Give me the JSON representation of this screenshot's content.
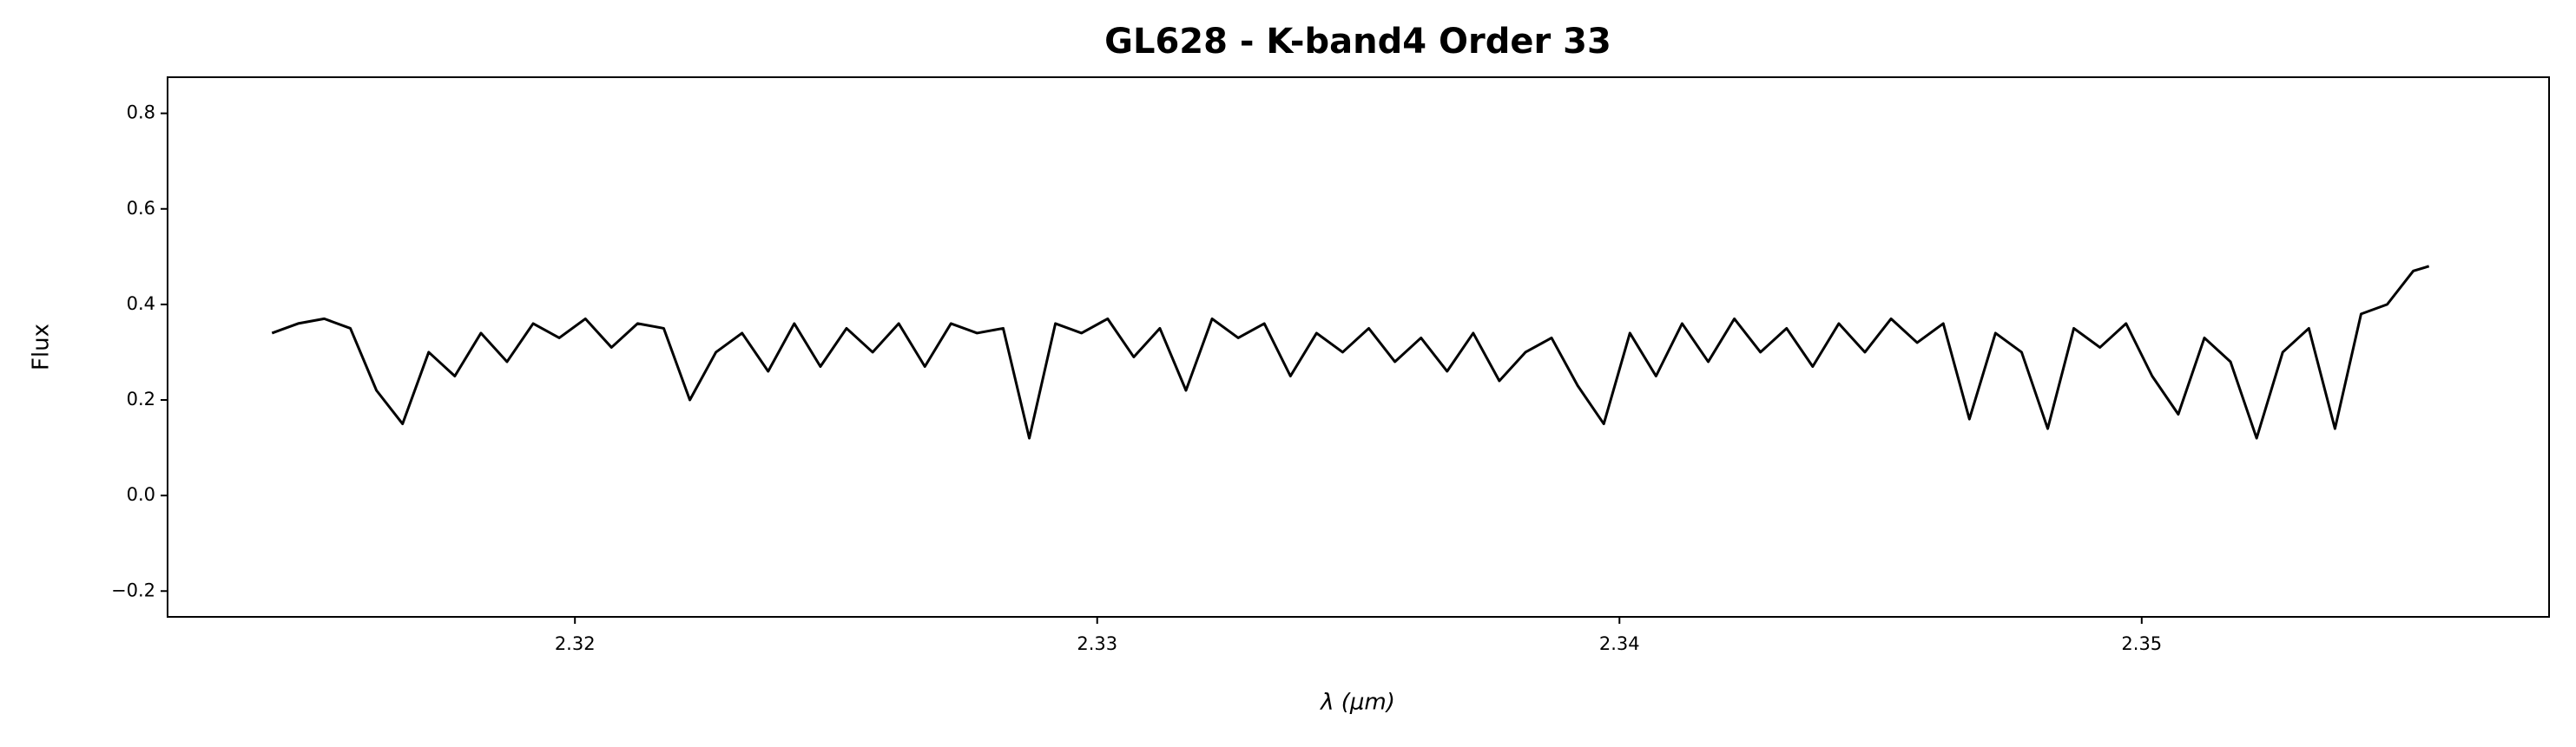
{
  "chart_data": {
    "type": "line",
    "title": "GL628 - K-band4 Order 33",
    "xlabel": "λ (μm)",
    "ylabel": "Flux",
    "x": [
      2.3142,
      2.3147,
      2.3152,
      2.3157,
      2.3162,
      2.3167,
      2.3172,
      2.3177,
      2.3182,
      2.3187,
      2.3192,
      2.3197,
      2.3202,
      2.3207,
      2.3212,
      2.3217,
      2.3222,
      2.3227,
      2.3232,
      2.3237,
      2.3242,
      2.3247,
      2.3252,
      2.3257,
      2.3262,
      2.3267,
      2.3272,
      2.3277,
      2.3282,
      2.3287,
      2.3292,
      2.3297,
      2.3302,
      2.3307,
      2.3312,
      2.3317,
      2.3322,
      2.3327,
      2.3332,
      2.3337,
      2.3342,
      2.3347,
      2.3352,
      2.3357,
      2.3362,
      2.3367,
      2.3372,
      2.3377,
      2.3382,
      2.3387,
      2.3392,
      2.3397,
      2.3402,
      2.3407,
      2.3412,
      2.3417,
      2.3422,
      2.3427,
      2.3432,
      2.3437,
      2.3442,
      2.3447,
      2.3452,
      2.3457,
      2.3462,
      2.3467,
      2.3472,
      2.3477,
      2.3482,
      2.3487,
      2.3492,
      2.3497,
      2.3502,
      2.3507,
      2.3512,
      2.3517,
      2.3522,
      2.3527,
      2.3532,
      2.3537,
      2.3542,
      2.3547,
      2.3552,
      2.3555
    ],
    "series": [
      {
        "color": "#000000",
        "values": [
          0.34,
          0.36,
          0.37,
          0.35,
          0.22,
          0.15,
          0.3,
          0.25,
          0.34,
          0.28,
          0.36,
          0.33,
          0.37,
          0.31,
          0.36,
          0.35,
          0.2,
          0.3,
          0.34,
          0.26,
          0.36,
          0.27,
          0.35,
          0.3,
          0.36,
          0.27,
          0.36,
          0.34,
          0.35,
          0.12,
          0.36,
          0.34,
          0.37,
          0.29,
          0.35,
          0.22,
          0.37,
          0.33,
          0.36,
          0.25,
          0.34,
          0.3,
          0.35,
          0.28,
          0.33,
          0.26,
          0.34,
          0.24,
          0.3,
          0.33,
          0.23,
          0.15,
          0.34,
          0.25,
          0.36,
          0.28,
          0.37,
          0.3,
          0.35,
          0.27,
          0.36,
          0.3,
          0.37,
          0.32,
          0.36,
          0.16,
          0.34,
          0.3,
          0.14,
          0.35,
          0.31,
          0.36,
          0.25,
          0.17,
          0.33,
          0.28,
          0.12,
          0.3,
          0.35,
          0.14,
          0.38,
          0.4,
          0.47,
          0.48
        ]
      }
    ],
    "xlim": [
      2.3122,
      2.3578
    ],
    "xticks": [
      2.32,
      2.33,
      2.34,
      2.35
    ],
    "ylim": [
      -0.254,
      0.8756
    ],
    "yticks": [
      {
        "value": -0.2,
        "label": "−0.2"
      },
      {
        "value": 0.0,
        "label": "0.0"
      },
      0.2,
      0.4,
      0.6,
      0.8
    ],
    "grid": false
  }
}
